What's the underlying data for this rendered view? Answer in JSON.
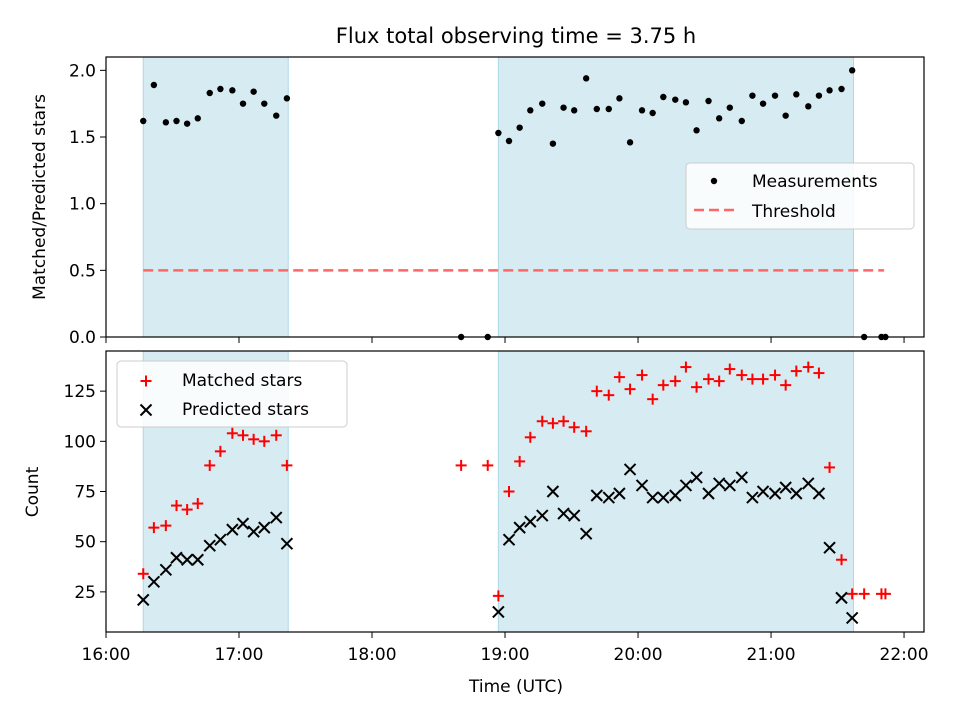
{
  "chart_data": {
    "title": "Flux total observing time = 3.75 h",
    "xlabel": "Time (UTC)",
    "x_axis": {
      "unit": "hours UTC",
      "range": [
        16.0,
        22.15
      ],
      "ticks": [
        {
          "v": 16,
          "label": "16:00"
        },
        {
          "v": 17,
          "label": "17:00"
        },
        {
          "v": 18,
          "label": "18:00"
        },
        {
          "v": 19,
          "label": "19:00"
        },
        {
          "v": 20,
          "label": "20:00"
        },
        {
          "v": 21,
          "label": "21:00"
        },
        {
          "v": 22,
          "label": "22:00"
        }
      ]
    },
    "observing_windows": [
      [
        16.28,
        17.37
      ],
      [
        18.95,
        21.62
      ]
    ],
    "window_color": "#add8e6",
    "top_panel": {
      "type": "scatter",
      "ylabel": "Matched/Predicted stars",
      "ylim": [
        0,
        2.1
      ],
      "yticks": [
        {
          "v": 0,
          "label": "0.0"
        },
        {
          "v": 0.5,
          "label": "0.5"
        },
        {
          "v": 1.0,
          "label": "1.0"
        },
        {
          "v": 1.5,
          "label": "1.5"
        },
        {
          "v": 2.0,
          "label": "2.0"
        }
      ],
      "legend": {
        "placement": "center-right",
        "measurements": "Measurements",
        "threshold": "Threshold"
      },
      "threshold": {
        "value": 0.5,
        "x_range": [
          16.28,
          21.85
        ],
        "color": "#ff6666"
      },
      "measurements": [
        [
          16.28,
          1.62
        ],
        [
          16.36,
          1.89
        ],
        [
          16.45,
          1.61
        ],
        [
          16.53,
          1.62
        ],
        [
          16.61,
          1.6
        ],
        [
          16.69,
          1.64
        ],
        [
          16.78,
          1.83
        ],
        [
          16.86,
          1.86
        ],
        [
          16.95,
          1.85
        ],
        [
          17.03,
          1.75
        ],
        [
          17.11,
          1.84
        ],
        [
          17.19,
          1.75
        ],
        [
          17.28,
          1.66
        ],
        [
          17.36,
          1.79
        ],
        [
          18.67,
          0.0
        ],
        [
          18.87,
          0.0
        ],
        [
          18.95,
          1.53
        ],
        [
          19.03,
          1.47
        ],
        [
          19.11,
          1.57
        ],
        [
          19.19,
          1.7
        ],
        [
          19.28,
          1.75
        ],
        [
          19.36,
          1.45
        ],
        [
          19.44,
          1.72
        ],
        [
          19.52,
          1.7
        ],
        [
          19.61,
          1.94
        ],
        [
          19.69,
          1.71
        ],
        [
          19.78,
          1.71
        ],
        [
          19.86,
          1.79
        ],
        [
          19.94,
          1.46
        ],
        [
          20.03,
          1.7
        ],
        [
          20.11,
          1.68
        ],
        [
          20.19,
          1.8
        ],
        [
          20.28,
          1.78
        ],
        [
          20.36,
          1.76
        ],
        [
          20.44,
          1.55
        ],
        [
          20.53,
          1.77
        ],
        [
          20.61,
          1.64
        ],
        [
          20.69,
          1.72
        ],
        [
          20.78,
          1.62
        ],
        [
          20.86,
          1.81
        ],
        [
          20.94,
          1.75
        ],
        [
          21.03,
          1.81
        ],
        [
          21.11,
          1.66
        ],
        [
          21.19,
          1.82
        ],
        [
          21.28,
          1.73
        ],
        [
          21.36,
          1.81
        ],
        [
          21.44,
          1.85
        ],
        [
          21.53,
          1.86
        ],
        [
          21.61,
          2.0
        ],
        [
          21.7,
          0.0
        ],
        [
          21.83,
          0.0
        ],
        [
          21.86,
          0.0
        ]
      ]
    },
    "bottom_panel": {
      "type": "scatter",
      "ylabel": "Count",
      "ylim": [
        5,
        145
      ],
      "yticks": [
        {
          "v": 25,
          "label": "25"
        },
        {
          "v": 50,
          "label": "50"
        },
        {
          "v": 75,
          "label": "75"
        },
        {
          "v": 100,
          "label": "100"
        },
        {
          "v": 125,
          "label": "125"
        }
      ],
      "legend": {
        "placement": "top-left",
        "matched": "Matched stars",
        "predicted": "Predicted stars"
      },
      "series": [
        {
          "name": "Matched stars",
          "marker": "plus",
          "color": "#ff0000",
          "points": [
            [
              16.28,
              34
            ],
            [
              16.36,
              57
            ],
            [
              16.45,
              58
            ],
            [
              16.53,
              68
            ],
            [
              16.61,
              66
            ],
            [
              16.69,
              69
            ],
            [
              16.78,
              88
            ],
            [
              16.86,
              95
            ],
            [
              16.95,
              104
            ],
            [
              17.03,
              103
            ],
            [
              17.11,
              101
            ],
            [
              17.19,
              100
            ],
            [
              17.28,
              103
            ],
            [
              17.36,
              88
            ],
            [
              18.67,
              88
            ],
            [
              18.87,
              88
            ],
            [
              18.95,
              23
            ],
            [
              19.03,
              75
            ],
            [
              19.11,
              90
            ],
            [
              19.19,
              102
            ],
            [
              19.28,
              110
            ],
            [
              19.36,
              109
            ],
            [
              19.44,
              110
            ],
            [
              19.52,
              107
            ],
            [
              19.61,
              105
            ],
            [
              19.69,
              125
            ],
            [
              19.78,
              123
            ],
            [
              19.86,
              132
            ],
            [
              19.94,
              126
            ],
            [
              20.03,
              133
            ],
            [
              20.11,
              121
            ],
            [
              20.19,
              128
            ],
            [
              20.28,
              130
            ],
            [
              20.36,
              137
            ],
            [
              20.44,
              127
            ],
            [
              20.53,
              131
            ],
            [
              20.61,
              130
            ],
            [
              20.69,
              136
            ],
            [
              20.78,
              133
            ],
            [
              20.86,
              131
            ],
            [
              20.94,
              131
            ],
            [
              21.03,
              133
            ],
            [
              21.11,
              128
            ],
            [
              21.19,
              135
            ],
            [
              21.28,
              137
            ],
            [
              21.36,
              134
            ],
            [
              21.44,
              87
            ],
            [
              21.53,
              41
            ],
            [
              21.61,
              24
            ],
            [
              21.7,
              24
            ],
            [
              21.83,
              24
            ],
            [
              21.86,
              24
            ]
          ]
        },
        {
          "name": "Predicted stars",
          "marker": "x",
          "color": "#000000",
          "points": [
            [
              16.28,
              21
            ],
            [
              16.36,
              30
            ],
            [
              16.45,
              36
            ],
            [
              16.53,
              42
            ],
            [
              16.61,
              41
            ],
            [
              16.69,
              41
            ],
            [
              16.78,
              48
            ],
            [
              16.86,
              51
            ],
            [
              16.95,
              56
            ],
            [
              17.03,
              59
            ],
            [
              17.11,
              55
            ],
            [
              17.19,
              57
            ],
            [
              17.28,
              62
            ],
            [
              17.36,
              49
            ],
            [
              18.95,
              15
            ],
            [
              19.03,
              51
            ],
            [
              19.11,
              57
            ],
            [
              19.19,
              60
            ],
            [
              19.28,
              63
            ],
            [
              19.36,
              75
            ],
            [
              19.44,
              64
            ],
            [
              19.52,
              63
            ],
            [
              19.61,
              54
            ],
            [
              19.69,
              73
            ],
            [
              19.78,
              72
            ],
            [
              19.86,
              74
            ],
            [
              19.94,
              86
            ],
            [
              20.03,
              78
            ],
            [
              20.11,
              72
            ],
            [
              20.19,
              72
            ],
            [
              20.28,
              73
            ],
            [
              20.36,
              78
            ],
            [
              20.44,
              82
            ],
            [
              20.53,
              74
            ],
            [
              20.61,
              79
            ],
            [
              20.69,
              78
            ],
            [
              20.78,
              82
            ],
            [
              20.86,
              72
            ],
            [
              20.94,
              75
            ],
            [
              21.03,
              74
            ],
            [
              21.11,
              77
            ],
            [
              21.19,
              74
            ],
            [
              21.28,
              79
            ],
            [
              21.36,
              74
            ],
            [
              21.44,
              47
            ],
            [
              21.53,
              22
            ],
            [
              21.61,
              12
            ]
          ]
        }
      ]
    }
  }
}
